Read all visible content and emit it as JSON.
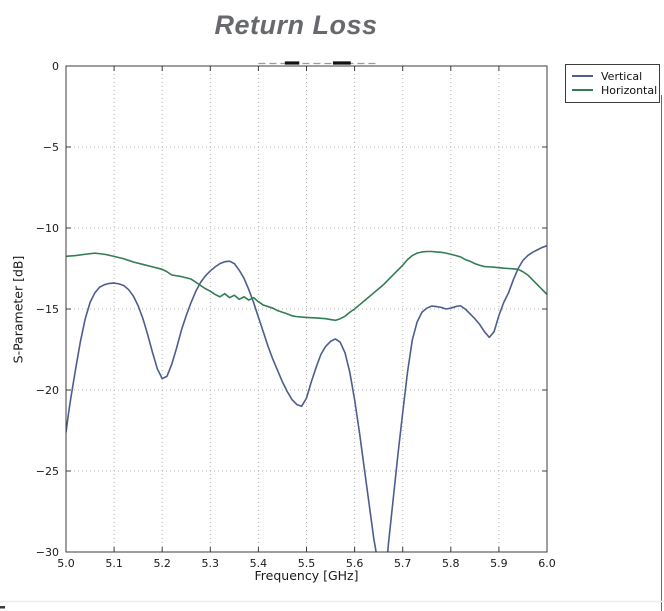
{
  "title": "Return Loss",
  "legend": {
    "items": [
      {
        "label": "Vertical",
        "color": "#4d5d8d"
      },
      {
        "label": "Horizontal",
        "color": "#337d52"
      }
    ]
  },
  "chart_data": {
    "type": "line",
    "title": "Return Loss",
    "xlabel": "Frequency [GHz]",
    "ylabel": "S-Parameter [dB]",
    "xlim": [
      5.0,
      6.0
    ],
    "ylim": [
      -30,
      0
    ],
    "grid": true,
    "grid_style": "dotted gray",
    "legend_position": "upper right, outside plot area",
    "xticks": {
      "values": [
        5.0,
        5.1,
        5.2,
        5.3,
        5.4,
        5.5,
        5.6,
        5.7,
        5.8,
        5.9,
        6.0
      ],
      "labels": [
        "5.0",
        "5.1",
        "5.2",
        "5.3",
        "5.4",
        "5.5",
        "5.6",
        "5.7",
        "5.8",
        "5.9",
        "6.0"
      ]
    },
    "yticks": {
      "values": [
        0,
        -5,
        -10,
        -15,
        -20,
        -25,
        -30
      ],
      "labels": [
        "0",
        "−5",
        "−10",
        "−15",
        "−20",
        "−25",
        "−30"
      ]
    },
    "series": [
      {
        "name": "Vertical",
        "color": "#4d5d8d",
        "points": [
          [
            5.0,
            -22.6
          ],
          [
            5.005,
            -21.5
          ],
          [
            5.01,
            -20.5
          ],
          [
            5.02,
            -18.7
          ],
          [
            5.03,
            -17.0
          ],
          [
            5.04,
            -15.6
          ],
          [
            5.05,
            -14.6
          ],
          [
            5.06,
            -14.0
          ],
          [
            5.07,
            -13.65
          ],
          [
            5.08,
            -13.5
          ],
          [
            5.09,
            -13.42
          ],
          [
            5.1,
            -13.4
          ],
          [
            5.11,
            -13.45
          ],
          [
            5.12,
            -13.55
          ],
          [
            5.13,
            -13.8
          ],
          [
            5.14,
            -14.2
          ],
          [
            5.15,
            -14.8
          ],
          [
            5.16,
            -15.6
          ],
          [
            5.17,
            -16.6
          ],
          [
            5.18,
            -17.7
          ],
          [
            5.19,
            -18.7
          ],
          [
            5.2,
            -19.3
          ],
          [
            5.21,
            -19.15
          ],
          [
            5.22,
            -18.4
          ],
          [
            5.23,
            -17.4
          ],
          [
            5.24,
            -16.3
          ],
          [
            5.25,
            -15.4
          ],
          [
            5.26,
            -14.6
          ],
          [
            5.27,
            -13.9
          ],
          [
            5.28,
            -13.35
          ],
          [
            5.29,
            -12.95
          ],
          [
            5.3,
            -12.65
          ],
          [
            5.31,
            -12.4
          ],
          [
            5.32,
            -12.2
          ],
          [
            5.33,
            -12.08
          ],
          [
            5.34,
            -12.05
          ],
          [
            5.35,
            -12.2
          ],
          [
            5.36,
            -12.6
          ],
          [
            5.37,
            -13.1
          ],
          [
            5.38,
            -13.8
          ],
          [
            5.39,
            -14.6
          ],
          [
            5.4,
            -15.5
          ],
          [
            5.41,
            -16.4
          ],
          [
            5.42,
            -17.3
          ],
          [
            5.43,
            -18.1
          ],
          [
            5.44,
            -18.8
          ],
          [
            5.45,
            -19.5
          ],
          [
            5.46,
            -20.1
          ],
          [
            5.47,
            -20.6
          ],
          [
            5.48,
            -20.9
          ],
          [
            5.49,
            -21.0
          ],
          [
            5.5,
            -20.5
          ],
          [
            5.51,
            -19.5
          ],
          [
            5.52,
            -18.6
          ],
          [
            5.53,
            -17.8
          ],
          [
            5.54,
            -17.3
          ],
          [
            5.55,
            -17.0
          ],
          [
            5.56,
            -16.85
          ],
          [
            5.57,
            -17.05
          ],
          [
            5.58,
            -17.7
          ],
          [
            5.59,
            -18.9
          ],
          [
            5.6,
            -20.6
          ],
          [
            5.61,
            -22.6
          ],
          [
            5.62,
            -24.8
          ],
          [
            5.63,
            -27.0
          ],
          [
            5.64,
            -29.2
          ],
          [
            5.65,
            -30.9
          ],
          [
            5.655,
            -31.6
          ],
          [
            5.665,
            -31.4
          ],
          [
            5.67,
            -29.6
          ],
          [
            5.68,
            -26.8
          ],
          [
            5.69,
            -24.0
          ],
          [
            5.7,
            -21.4
          ],
          [
            5.71,
            -18.9
          ],
          [
            5.72,
            -16.9
          ],
          [
            5.73,
            -15.8
          ],
          [
            5.74,
            -15.2
          ],
          [
            5.75,
            -14.95
          ],
          [
            5.76,
            -14.82
          ],
          [
            5.77,
            -14.85
          ],
          [
            5.78,
            -14.9
          ],
          [
            5.79,
            -15.0
          ],
          [
            5.8,
            -14.95
          ],
          [
            5.81,
            -14.85
          ],
          [
            5.82,
            -14.8
          ],
          [
            5.83,
            -15.0
          ],
          [
            5.84,
            -15.3
          ],
          [
            5.85,
            -15.6
          ],
          [
            5.86,
            -15.95
          ],
          [
            5.87,
            -16.4
          ],
          [
            5.88,
            -16.75
          ],
          [
            5.89,
            -16.4
          ],
          [
            5.9,
            -15.4
          ],
          [
            5.91,
            -14.6
          ],
          [
            5.92,
            -14.0
          ],
          [
            5.93,
            -13.2
          ],
          [
            5.94,
            -12.5
          ],
          [
            5.95,
            -12.0
          ],
          [
            5.96,
            -11.7
          ],
          [
            5.97,
            -11.5
          ],
          [
            5.98,
            -11.35
          ],
          [
            5.99,
            -11.2
          ],
          [
            6.0,
            -11.1
          ]
        ]
      },
      {
        "name": "Horizontal",
        "color": "#337d52",
        "points": [
          [
            5.0,
            -11.75
          ],
          [
            5.02,
            -11.7
          ],
          [
            5.04,
            -11.62
          ],
          [
            5.06,
            -11.55
          ],
          [
            5.08,
            -11.62
          ],
          [
            5.1,
            -11.75
          ],
          [
            5.12,
            -11.9
          ],
          [
            5.14,
            -12.1
          ],
          [
            5.16,
            -12.25
          ],
          [
            5.18,
            -12.4
          ],
          [
            5.2,
            -12.55
          ],
          [
            5.21,
            -12.7
          ],
          [
            5.22,
            -12.9
          ],
          [
            5.24,
            -13.0
          ],
          [
            5.26,
            -13.15
          ],
          [
            5.28,
            -13.55
          ],
          [
            5.29,
            -13.75
          ],
          [
            5.3,
            -13.9
          ],
          [
            5.31,
            -14.1
          ],
          [
            5.32,
            -14.25
          ],
          [
            5.33,
            -14.05
          ],
          [
            5.34,
            -14.3
          ],
          [
            5.35,
            -14.15
          ],
          [
            5.36,
            -14.4
          ],
          [
            5.37,
            -14.25
          ],
          [
            5.38,
            -14.45
          ],
          [
            5.39,
            -14.3
          ],
          [
            5.4,
            -14.55
          ],
          [
            5.41,
            -14.75
          ],
          [
            5.42,
            -14.85
          ],
          [
            5.43,
            -14.95
          ],
          [
            5.44,
            -15.1
          ],
          [
            5.45,
            -15.2
          ],
          [
            5.46,
            -15.3
          ],
          [
            5.47,
            -15.42
          ],
          [
            5.48,
            -15.47
          ],
          [
            5.49,
            -15.5
          ],
          [
            5.5,
            -15.52
          ],
          [
            5.52,
            -15.55
          ],
          [
            5.54,
            -15.6
          ],
          [
            5.55,
            -15.65
          ],
          [
            5.56,
            -15.7
          ],
          [
            5.57,
            -15.6
          ],
          [
            5.58,
            -15.45
          ],
          [
            5.59,
            -15.2
          ],
          [
            5.6,
            -15.0
          ],
          [
            5.61,
            -14.75
          ],
          [
            5.62,
            -14.5
          ],
          [
            5.63,
            -14.25
          ],
          [
            5.64,
            -14.0
          ],
          [
            5.65,
            -13.75
          ],
          [
            5.66,
            -13.5
          ],
          [
            5.67,
            -13.2
          ],
          [
            5.68,
            -12.9
          ],
          [
            5.69,
            -12.6
          ],
          [
            5.7,
            -12.3
          ],
          [
            5.71,
            -11.95
          ],
          [
            5.72,
            -11.7
          ],
          [
            5.73,
            -11.55
          ],
          [
            5.74,
            -11.48
          ],
          [
            5.75,
            -11.45
          ],
          [
            5.76,
            -11.45
          ],
          [
            5.77,
            -11.48
          ],
          [
            5.78,
            -11.5
          ],
          [
            5.79,
            -11.55
          ],
          [
            5.8,
            -11.62
          ],
          [
            5.81,
            -11.7
          ],
          [
            5.82,
            -11.78
          ],
          [
            5.83,
            -11.95
          ],
          [
            5.84,
            -12.05
          ],
          [
            5.85,
            -12.2
          ],
          [
            5.86,
            -12.3
          ],
          [
            5.87,
            -12.38
          ],
          [
            5.88,
            -12.4
          ],
          [
            5.89,
            -12.42
          ],
          [
            5.9,
            -12.45
          ],
          [
            5.91,
            -12.48
          ],
          [
            5.92,
            -12.5
          ],
          [
            5.93,
            -12.52
          ],
          [
            5.94,
            -12.55
          ],
          [
            5.95,
            -12.7
          ],
          [
            5.96,
            -12.9
          ],
          [
            5.97,
            -13.2
          ],
          [
            5.98,
            -13.5
          ],
          [
            5.99,
            -13.8
          ],
          [
            6.0,
            -14.1
          ]
        ]
      }
    ],
    "annotations": {
      "clipped_trace_at_zero_db": {
        "description": "gray dashed segment hugging 0 dB at top of plot with two solid black dashes",
        "y": 0,
        "x_range": [
          5.4,
          5.645
        ],
        "dash_color": "#9a9a9a",
        "solid_dash_segments_x": [
          [
            5.455,
            5.485
          ],
          [
            5.555,
            5.592
          ]
        ],
        "solid_dash_color": "#111111"
      }
    }
  },
  "colors": {
    "background": "#ffffff",
    "title_text": "#67696d",
    "axis_text": "#1a1a1a",
    "grid": "#b5b5b5",
    "spine": "#3c3c3c",
    "vertical_series": "#4d5d8d",
    "horizontal_series": "#337d52"
  }
}
